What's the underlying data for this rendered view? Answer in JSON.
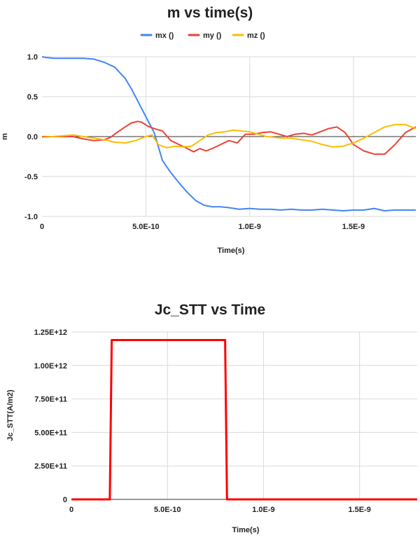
{
  "chart_data": [
    {
      "type": "line",
      "title": "m vs time(s)",
      "xlabel": "Time(s)",
      "ylabel": "m",
      "xlim": [
        0,
        1.8e-09
      ],
      "ylim": [
        -1.0,
        1.0
      ],
      "xticks": [
        0,
        5e-10,
        1e-09,
        1.5e-09
      ],
      "xtick_labels": [
        "0",
        "5.0E-10",
        "1.0E-9",
        "1.5E-9"
      ],
      "yticks": [
        1.0,
        0.5,
        0.0,
        -0.5,
        -1.0
      ],
      "ytick_labels": [
        "1.0",
        "0.5",
        "0.0",
        "-0.5",
        "-1.0"
      ],
      "grid": true,
      "legend": "top",
      "series": [
        {
          "name": "mx ()",
          "color": "#4285f4",
          "x": [
            0,
            2e-11,
            6e-11,
            1e-10,
            1.5e-10,
            2e-10,
            2.5e-10,
            3e-10,
            3.5e-10,
            4e-10,
            4.3e-10,
            4.6e-10,
            5e-10,
            5.4e-10,
            5.8e-10,
            6.2e-10,
            6.6e-10,
            7e-10,
            7.4e-10,
            7.8e-10,
            8.2e-10,
            8.6e-10,
            9e-10,
            9.5e-10,
            1e-09,
            1.05e-09,
            1.1e-09,
            1.15e-09,
            1.2e-09,
            1.25e-09,
            1.3e-09,
            1.35e-09,
            1.4e-09,
            1.45e-09,
            1.5e-09,
            1.55e-09,
            1.6e-09,
            1.65e-09,
            1.7e-09,
            1.75e-09,
            1.8e-09
          ],
          "y": [
            1.0,
            0.99,
            0.98,
            0.98,
            0.98,
            0.98,
            0.97,
            0.93,
            0.87,
            0.73,
            0.6,
            0.45,
            0.25,
            0.05,
            -0.3,
            -0.45,
            -0.58,
            -0.7,
            -0.8,
            -0.86,
            -0.88,
            -0.88,
            -0.89,
            -0.91,
            -0.9,
            -0.91,
            -0.91,
            -0.92,
            -0.91,
            -0.92,
            -0.92,
            -0.91,
            -0.92,
            -0.93,
            -0.92,
            -0.92,
            -0.9,
            -0.93,
            -0.92,
            -0.92,
            -0.92
          ]
        },
        {
          "name": "my ()",
          "color": "#ea4335",
          "x": [
            0,
            5e-11,
            1e-10,
            1.5e-10,
            2e-10,
            2.5e-10,
            3e-10,
            3.3e-10,
            3.6e-10,
            4e-10,
            4.3e-10,
            4.6e-10,
            4.8e-10,
            5.1e-10,
            5.4e-10,
            5.8e-10,
            6.2e-10,
            6.6e-10,
            7e-10,
            7.3e-10,
            7.6e-10,
            7.9e-10,
            8.2e-10,
            8.6e-10,
            9e-10,
            9.4e-10,
            9.8e-10,
            1.02e-09,
            1.06e-09,
            1.1e-09,
            1.14e-09,
            1.18e-09,
            1.22e-09,
            1.26e-09,
            1.3e-09,
            1.34e-09,
            1.38e-09,
            1.42e-09,
            1.46e-09,
            1.5e-09,
            1.55e-09,
            1.6e-09,
            1.65e-09,
            1.7e-09,
            1.75e-09,
            1.8e-09
          ],
          "y": [
            0.0,
            0.0,
            0.0,
            0.0,
            -0.03,
            -0.05,
            -0.04,
            -0.01,
            0.05,
            0.12,
            0.17,
            0.19,
            0.18,
            0.13,
            0.1,
            0.07,
            -0.05,
            -0.1,
            -0.15,
            -0.19,
            -0.15,
            -0.18,
            -0.15,
            -0.1,
            -0.05,
            -0.08,
            0.03,
            0.03,
            0.05,
            0.06,
            0.03,
            0.0,
            0.03,
            0.04,
            0.02,
            0.06,
            0.1,
            0.12,
            0.05,
            -0.1,
            -0.18,
            -0.22,
            -0.22,
            -0.1,
            0.05,
            0.12
          ]
        },
        {
          "name": "mz ()",
          "color": "#fbbc04",
          "x": [
            0,
            5e-11,
            1e-10,
            1.5e-10,
            2e-10,
            2.5e-10,
            3e-10,
            3.5e-10,
            4e-10,
            4.5e-10,
            5e-10,
            5.3e-10,
            5.6e-10,
            6e-10,
            6.4e-10,
            6.8e-10,
            7.2e-10,
            7.6e-10,
            8e-10,
            8.4e-10,
            8.8e-10,
            9.2e-10,
            9.6e-10,
            1e-09,
            1.04e-09,
            1.08e-09,
            1.12e-09,
            1.16e-09,
            1.2e-09,
            1.25e-09,
            1.3e-09,
            1.35e-09,
            1.4e-09,
            1.45e-09,
            1.5e-09,
            1.55e-09,
            1.6e-09,
            1.65e-09,
            1.7e-09,
            1.75e-09,
            1.8e-09
          ],
          "y": [
            -0.01,
            0.0,
            0.01,
            0.02,
            0.0,
            -0.02,
            -0.04,
            -0.07,
            -0.08,
            -0.05,
            0.0,
            0.02,
            -0.1,
            -0.14,
            -0.12,
            -0.13,
            -0.12,
            -0.05,
            0.02,
            0.05,
            0.06,
            0.08,
            0.07,
            0.06,
            0.03,
            0.0,
            -0.01,
            -0.02,
            -0.02,
            -0.04,
            -0.06,
            -0.1,
            -0.13,
            -0.12,
            -0.08,
            -0.02,
            0.05,
            0.12,
            0.15,
            0.15,
            0.1
          ]
        }
      ]
    },
    {
      "type": "line",
      "title": "Jc_STT vs Time",
      "xlabel": "Time(s)",
      "ylabel": "Jc_STT(A/m2)",
      "xlim": [
        0,
        1.8e-09
      ],
      "ylim": [
        0,
        1250000000000.0
      ],
      "xticks": [
        0,
        5e-10,
        1e-09,
        1.5e-09
      ],
      "xtick_labels": [
        "0",
        "5.0E-10",
        "1.0E-9",
        "1.5E-9"
      ],
      "yticks": [
        1250000000000.0,
        1000000000000.0,
        750000000000.0,
        500000000000.0,
        250000000000.0,
        0
      ],
      "ytick_labels": [
        "1.25E+12",
        "1.00E+12",
        "7.50E+11",
        "5.00E+11",
        "2.50E+11",
        "0"
      ],
      "grid": true,
      "legend": "none",
      "series": [
        {
          "color": "#ff0000",
          "x": [
            0,
            2e-10,
            2.1e-10,
            8e-10,
            8.1e-10,
            1.8e-09
          ],
          "y": [
            0,
            0,
            1190000000000.0,
            1190000000000.0,
            0,
            0
          ]
        }
      ]
    }
  ]
}
